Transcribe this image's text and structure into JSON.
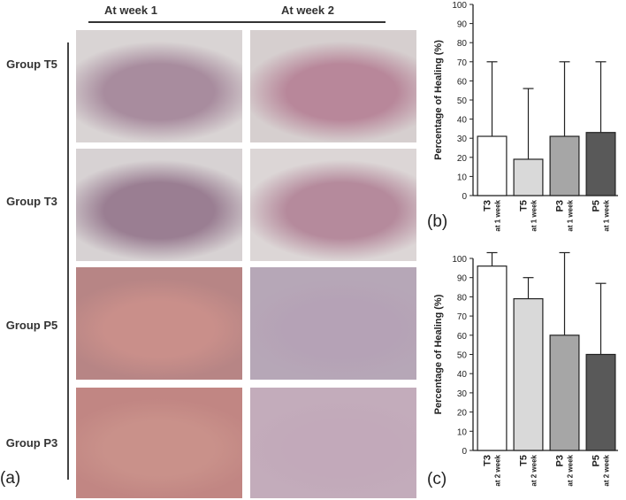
{
  "columns": [
    "At week 1",
    "At week 2"
  ],
  "groups": [
    "Group T5",
    "Group T3",
    "Group P5",
    "Group P3"
  ],
  "panel_letters": {
    "a": "(a)",
    "b": "(b)",
    "c": "(c)"
  },
  "photos": [
    {
      "name": "photo-t5-week1",
      "tissue": "#a88c9e",
      "bg": "#d9d4d4"
    },
    {
      "name": "photo-t5-week2",
      "tissue": "#b8879a",
      "bg": "#d6cfcf"
    },
    {
      "name": "photo-t3-week1",
      "tissue": "#9a7e92",
      "bg": "#d7d2d3"
    },
    {
      "name": "photo-t3-week2",
      "tissue": "#b58a9c",
      "bg": "#dcd6d6"
    },
    {
      "name": "photo-p5-week1",
      "tissue": "#c98f8a",
      "bg": "#b78585"
    },
    {
      "name": "photo-p5-week2",
      "tissue": "#b5a2b6",
      "bg": "#b6a7b7"
    },
    {
      "name": "photo-p3-week1",
      "tissue": "#c9918a",
      "bg": "#c18683"
    },
    {
      "name": "photo-p3-week2",
      "tissue": "#c2a9ba",
      "bg": "#c3acbb"
    }
  ],
  "chart_data": [
    {
      "type": "bar",
      "panel": "(b)",
      "categories": [
        "T3",
        "T5",
        "P3",
        "P5"
      ],
      "sublabels": [
        "at 1 week",
        "at 1 week",
        "at 1 week",
        "at 1 week"
      ],
      "values": [
        31,
        19,
        31,
        33
      ],
      "errors": [
        39,
        37,
        39,
        37
      ],
      "colors": [
        "#ffffff",
        "#d9d9d9",
        "#a6a6a6",
        "#595959"
      ],
      "ylabel": "Percentage of Healing (%)",
      "ylim": [
        0,
        100
      ],
      "yticks": [
        0,
        10,
        20,
        30,
        40,
        50,
        60,
        70,
        80,
        90,
        100
      ]
    },
    {
      "type": "bar",
      "panel": "(c)",
      "categories": [
        "T3",
        "T5",
        "P3",
        "P5"
      ],
      "sublabels": [
        "at 2 week",
        "at 2 week",
        "at 2 week",
        "at 2 week"
      ],
      "values": [
        96,
        79,
        60,
        50
      ],
      "errors": [
        7,
        11,
        43,
        37
      ],
      "colors": [
        "#ffffff",
        "#d9d9d9",
        "#a6a6a6",
        "#595959"
      ],
      "ylabel": "Percentage of Healing (%)",
      "ylim": [
        0,
        100
      ],
      "yticks": [
        0,
        10,
        20,
        30,
        40,
        50,
        60,
        70,
        80,
        90,
        100
      ]
    }
  ]
}
